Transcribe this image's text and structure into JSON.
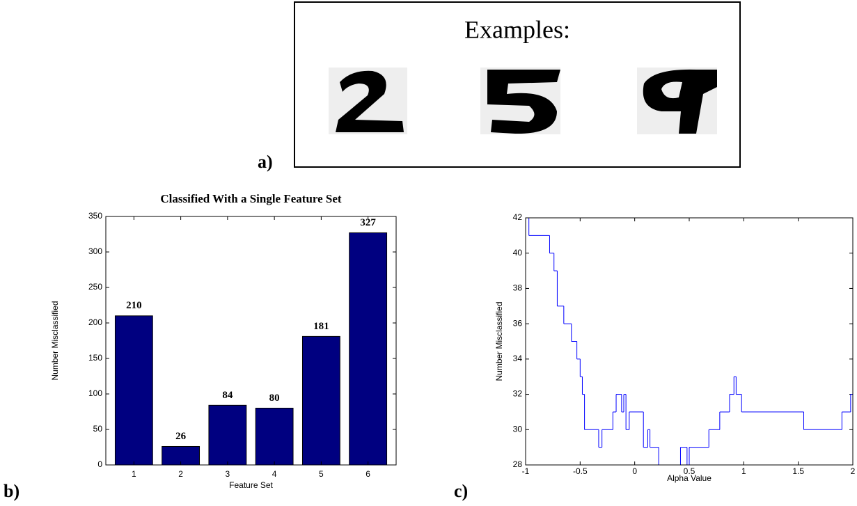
{
  "examples": {
    "title": "Examples:"
  },
  "panel_labels": [
    "a)",
    "b)",
    "c)"
  ],
  "chart_data": [
    {
      "type": "bar",
      "title": "Classified With a Single Feature Set",
      "xlabel": "Feature Set",
      "ylabel": "Number Misclassified",
      "categories": [
        "1",
        "2",
        "3",
        "4",
        "5",
        "6"
      ],
      "values": [
        210,
        26,
        84,
        80,
        181,
        327
      ],
      "color": "#000080",
      "data_labels": true,
      "ylim": [
        0,
        350
      ],
      "yticks": [
        0,
        50,
        100,
        150,
        200,
        250,
        300,
        350
      ]
    },
    {
      "type": "line",
      "step": "post",
      "xlabel": "Alpha Value",
      "ylabel": "Number Misclassified",
      "x": [
        -1,
        -0.97,
        -0.78,
        -0.74,
        -0.71,
        -0.65,
        -0.58,
        -0.53,
        -0.5,
        -0.48,
        -0.46,
        -0.33,
        -0.3,
        -0.2,
        -0.17,
        -0.12,
        -0.1,
        -0.08,
        -0.05,
        0.08,
        0.12,
        0.14,
        0.22,
        0.42,
        0.48,
        0.5,
        0.68,
        0.78,
        0.87,
        0.91,
        0.93,
        0.98,
        1.55,
        1.9,
        1.98,
        2
      ],
      "values": [
        42,
        41,
        40,
        39,
        37,
        36,
        35,
        34,
        33,
        32,
        30,
        29,
        30,
        31,
        32,
        31,
        32,
        30,
        31,
        29,
        30,
        29,
        28,
        29,
        28,
        29,
        30,
        31,
        32,
        33,
        32,
        31,
        30,
        31,
        32,
        32
      ],
      "color": "#0000ff",
      "xlim": [
        -1,
        2
      ],
      "xticks": [
        -1,
        -0.5,
        0,
        0.5,
        1,
        1.5,
        2
      ],
      "ylim": [
        28,
        42
      ],
      "yticks": [
        28,
        30,
        32,
        34,
        36,
        38,
        40,
        42
      ]
    }
  ]
}
